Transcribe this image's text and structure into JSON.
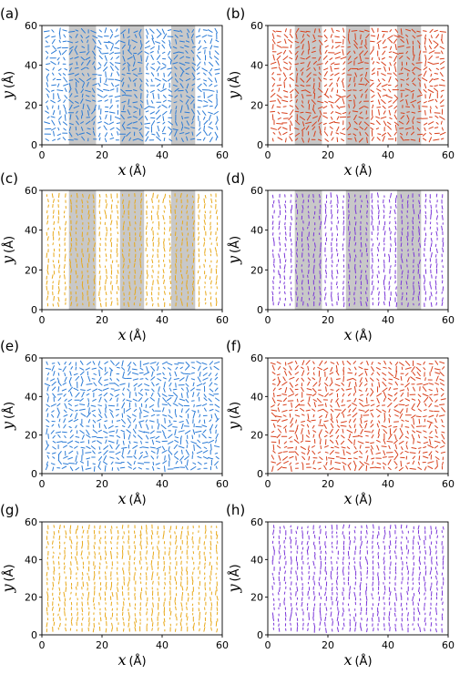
{
  "chart_data": [
    {
      "type": "quiver",
      "panel_label": "(a)",
      "color": "#2b7bd6",
      "shaded_bands": [
        [
          9,
          18
        ],
        [
          26,
          34
        ],
        [
          43,
          51
        ]
      ],
      "field": "disordered",
      "xlim": [
        0,
        60
      ],
      "ylim": [
        0,
        60
      ],
      "xticks": [
        "0",
        "20",
        "40",
        "60"
      ],
      "yticks": [
        "0",
        "20",
        "40",
        "60"
      ],
      "xlabel_var": "x",
      "xlabel_unit": "(Å)",
      "ylabel_var": "y",
      "ylabel_unit": "(Å)"
    },
    {
      "type": "quiver",
      "panel_label": "(b)",
      "color": "#d8401c",
      "shaded_bands": [
        [
          9,
          18
        ],
        [
          26,
          34
        ],
        [
          43,
          51
        ]
      ],
      "field": "disordered",
      "xlim": [
        0,
        60
      ],
      "ylim": [
        0,
        60
      ],
      "xticks": [
        "0",
        "20",
        "40",
        "60"
      ],
      "yticks": [
        "0",
        "20",
        "40",
        "60"
      ],
      "xlabel_var": "x",
      "xlabel_unit": "(Å)",
      "ylabel_var": "y",
      "ylabel_unit": "(Å)"
    },
    {
      "type": "quiver",
      "panel_label": "(c)",
      "color": "#e8a818",
      "shaded_bands": [
        [
          9,
          18
        ],
        [
          26,
          34
        ],
        [
          43,
          51
        ]
      ],
      "field": "vertical",
      "xlim": [
        0,
        60
      ],
      "ylim": [
        0,
        60
      ],
      "xticks": [
        "0",
        "20",
        "40",
        "60"
      ],
      "yticks": [
        "0",
        "20",
        "40",
        "60"
      ],
      "xlabel_var": "x",
      "xlabel_unit": "(Å)",
      "ylabel_var": "y",
      "ylabel_unit": "(Å)"
    },
    {
      "type": "quiver",
      "panel_label": "(d)",
      "color": "#7a35d8",
      "shaded_bands": [
        [
          9,
          18
        ],
        [
          26,
          34
        ],
        [
          43,
          51
        ]
      ],
      "field": "vertical",
      "xlim": [
        0,
        60
      ],
      "ylim": [
        0,
        60
      ],
      "xticks": [
        "0",
        "20",
        "40",
        "60"
      ],
      "yticks": [
        "0",
        "20",
        "40",
        "60"
      ],
      "xlabel_var": "x",
      "xlabel_unit": "(Å)",
      "ylabel_var": "y",
      "ylabel_unit": "(Å)"
    },
    {
      "type": "quiver",
      "panel_label": "(e)",
      "color": "#2b7bd6",
      "shaded_bands": [],
      "field": "disordered",
      "xlim": [
        0,
        60
      ],
      "ylim": [
        0,
        60
      ],
      "xticks": [
        "0",
        "20",
        "40",
        "60"
      ],
      "yticks": [
        "0",
        "20",
        "40",
        "60"
      ],
      "xlabel_var": "x",
      "xlabel_unit": "(Å)",
      "ylabel_var": "y",
      "ylabel_unit": "(Å)"
    },
    {
      "type": "quiver",
      "panel_label": "(f)",
      "color": "#d8401c",
      "shaded_bands": [],
      "field": "disordered",
      "xlim": [
        0,
        60
      ],
      "ylim": [
        0,
        60
      ],
      "xticks": [
        "0",
        "20",
        "40",
        "60"
      ],
      "yticks": [
        "0",
        "20",
        "40",
        "60"
      ],
      "xlabel_var": "x",
      "xlabel_unit": "(Å)",
      "ylabel_var": "y",
      "ylabel_unit": "(Å)"
    },
    {
      "type": "quiver",
      "panel_label": "(g)",
      "color": "#e8a818",
      "shaded_bands": [],
      "field": "vertical",
      "xlim": [
        0,
        60
      ],
      "ylim": [
        0,
        60
      ],
      "xticks": [
        "0",
        "20",
        "40",
        "60"
      ],
      "yticks": [
        "0",
        "20",
        "40",
        "60"
      ],
      "xlabel_var": "x",
      "xlabel_unit": "(Å)",
      "ylabel_var": "y",
      "ylabel_unit": "(Å)"
    },
    {
      "type": "quiver",
      "panel_label": "(h)",
      "color": "#7a35d8",
      "shaded_bands": [],
      "field": "vertical",
      "xlim": [
        0,
        60
      ],
      "ylim": [
        0,
        60
      ],
      "xticks": [
        "0",
        "20",
        "40",
        "60"
      ],
      "yticks": [
        "0",
        "20",
        "40",
        "60"
      ],
      "xlabel_var": "x",
      "xlabel_unit": "(Å)",
      "ylabel_var": "y",
      "ylabel_unit": "(Å)"
    }
  ],
  "band_color": "#c8c8c8"
}
